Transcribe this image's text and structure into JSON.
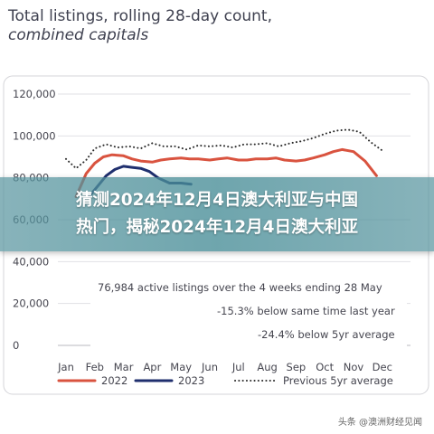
{
  "chart_data": {
    "type": "line",
    "title": "Total listings, rolling 28-day count,",
    "subtitle": "combined capitals",
    "ylim": [
      0,
      120000
    ],
    "yticks": [
      "0",
      "20,000",
      "40,000",
      "60,000",
      "80,000",
      "100,000",
      "120,000"
    ],
    "categories": [
      "Jan",
      "Feb",
      "Mar",
      "Apr",
      "May",
      "Jun",
      "Jul",
      "Aug",
      "Sep",
      "Oct",
      "Nov",
      "Dec"
    ],
    "grid": true,
    "legend_position": "bottom",
    "series": [
      {
        "name": "2022",
        "color": "#d9533f",
        "style": "solid",
        "values": [
          null,
          71000,
          82000,
          87000,
          90000,
          91000,
          90500,
          89000,
          88000,
          87500,
          88500,
          89000,
          89500,
          89000,
          89000,
          88500,
          89000,
          89500,
          88500,
          88500,
          89000,
          89000,
          89500,
          88500,
          88000,
          88500,
          89500,
          91000,
          92500,
          93500,
          92500,
          88000,
          81000
        ],
        "x": [
          1,
          1.35,
          1.7,
          2,
          2.3,
          2.6,
          3,
          3.3,
          3.6,
          4,
          4.3,
          4.6,
          5,
          5.3,
          5.6,
          6,
          6.3,
          6.6,
          7,
          7.3,
          7.6,
          8,
          8.3,
          8.6,
          9,
          9.3,
          9.6,
          10,
          10.3,
          10.6,
          11,
          11.4,
          11.8
        ]
      },
      {
        "name": "2023",
        "color": "#1f2f6e",
        "style": "solid",
        "values": [
          71000,
          76000,
          81000,
          84000,
          85500,
          85000,
          84500,
          83000,
          80000,
          77500,
          77500,
          76984
        ],
        "x": [
          1.8,
          2.1,
          2.4,
          2.7,
          3.0,
          3.3,
          3.6,
          3.9,
          4.2,
          4.6,
          5.0,
          5.35
        ]
      },
      {
        "name": "Previous 5yr average",
        "color": "#2b2b2b",
        "style": "dotted",
        "values": [
          89000,
          84500,
          88500,
          94000,
          96000,
          94500,
          95000,
          94000,
          96500,
          95000,
          95000,
          93500,
          95500,
          95000,
          95500,
          94500,
          96000,
          96000,
          96500,
          95000,
          96500,
          97500,
          99000,
          101000,
          102500,
          103000,
          102000,
          97000,
          93000
        ],
        "x": [
          1,
          1.35,
          1.7,
          2,
          2.4,
          2.8,
          3.2,
          3.6,
          4,
          4.4,
          4.8,
          5.2,
          5.6,
          6,
          6.4,
          6.8,
          7.2,
          7.6,
          8,
          8.4,
          8.8,
          9.2,
          9.6,
          10,
          10.4,
          10.8,
          11.2,
          11.6,
          12
        ]
      }
    ],
    "annotations": [
      "76,984 active listings over the 4 weeks ending 28 May",
      "-15.3% below same time last year",
      "-24.4% below 5yr average"
    ]
  },
  "overlay": {
    "line1": "猜测2024年12月4日澳大利亚与中国",
    "line2": "热门，揭秘2024年12月4日澳大利亚"
  },
  "watermark": "头条 @澳洲财经见闻"
}
